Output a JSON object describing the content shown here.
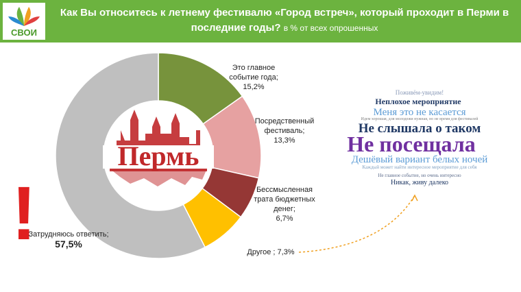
{
  "logo": "СВОИ",
  "chart_data": {
    "type": "donut",
    "title": "Как Вы относитесь к летнему фестивалю «Город встреч», который проходит в Перми в последние годы?",
    "subtitle": "в % от всех опрошенных",
    "center_label": "Пермь",
    "categories": [
      "Это главное событие года;",
      "Посредственный фестиваль;",
      "Бессмысленная трата бюджетных денег;",
      "Другое ;",
      "Затрудняюсь ответить;"
    ],
    "values": [
      15.2,
      13.3,
      6.7,
      7.3,
      57.5
    ],
    "value_labels": [
      "15,2%",
      "13,3%",
      "6,7%",
      "7,3%",
      "57,5%"
    ],
    "colors": [
      "#77933c",
      "#e6a1a1",
      "#953735",
      "#ffc000",
      "#bfbfbf"
    ]
  },
  "word_cloud": [
    "Поживём-увидим!",
    "Неплохое мероприятие",
    "Меня это не касается",
    "Идем хорошая, для молодежи нужная, но не время для фестивалей",
    "Не слышала о таком",
    "Не посещала",
    "Дешёвый вариант белых ночей",
    "Каждый может найти интересное мероприятие для себя",
    "Не главное событие, но очень интересно",
    "Никак, живу далеко"
  ]
}
